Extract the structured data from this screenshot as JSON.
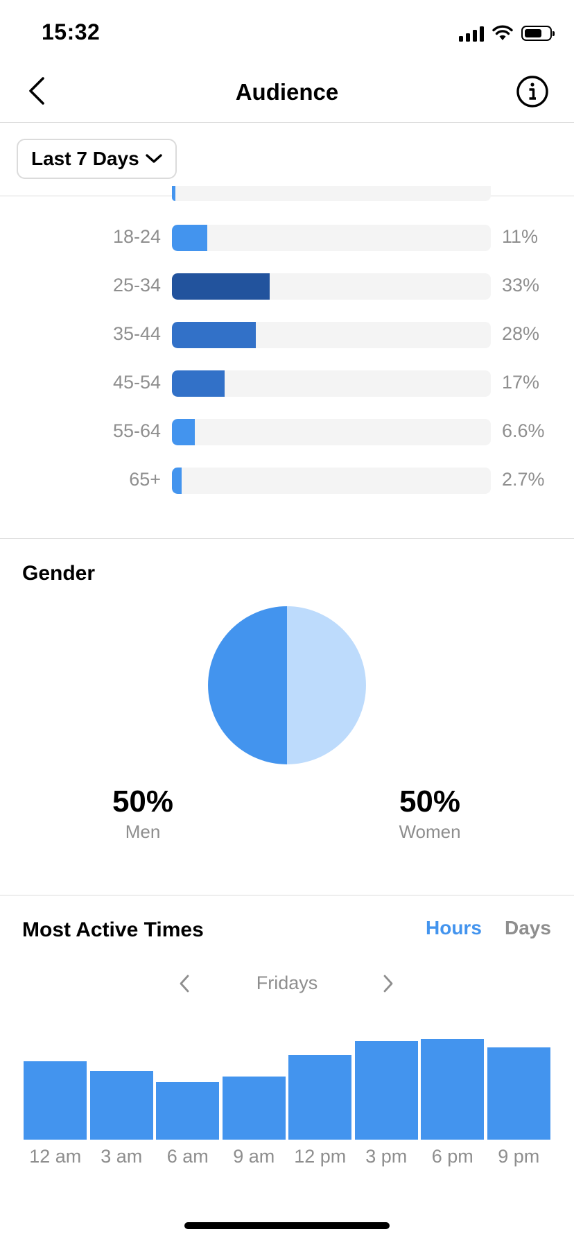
{
  "status_bar": {
    "time": "15:32",
    "battery_level": 0.7
  },
  "header": {
    "title": "Audience"
  },
  "filter": {
    "label": "Last 7 Days"
  },
  "age": {
    "rows": [
      {
        "label": "18-24",
        "value": 11,
        "display": "11%",
        "color": "#4394ee"
      },
      {
        "label": "25-34",
        "value": 33,
        "display": "33%",
        "color": "#22539d"
      },
      {
        "label": "35-44",
        "value": 28,
        "display": "28%",
        "color": "#3271c8"
      },
      {
        "label": "45-54",
        "value": 17,
        "display": "17%",
        "color": "#3271c8"
      },
      {
        "label": "55-64",
        "value": 6.6,
        "display": "6.6%",
        "color": "#4394ee"
      },
      {
        "label": "65+",
        "value": 2.7,
        "display": "2.7%",
        "color": "#4394ee"
      }
    ]
  },
  "gender": {
    "title": "Gender",
    "men": {
      "value": 50,
      "display": "50%",
      "label": "Men",
      "color": "#4394ee"
    },
    "women": {
      "value": 50,
      "display": "50%",
      "label": "Women",
      "color": "#bddbfc"
    }
  },
  "active_times": {
    "title": "Most Active Times",
    "tabs": {
      "hours": "Hours",
      "days": "Days"
    },
    "active_tab_color": "#4394ee",
    "day": "Fridays"
  },
  "chart_data": [
    {
      "type": "bar",
      "categories": [
        "12 am",
        "3 am",
        "6 am",
        "9 am",
        "12 pm",
        "3 pm",
        "6 pm",
        "9 pm"
      ],
      "values": [
        0.78,
        0.68,
        0.57,
        0.63,
        0.84,
        0.98,
        1.0,
        0.92
      ],
      "ylim": [
        0,
        1
      ]
    }
  ]
}
